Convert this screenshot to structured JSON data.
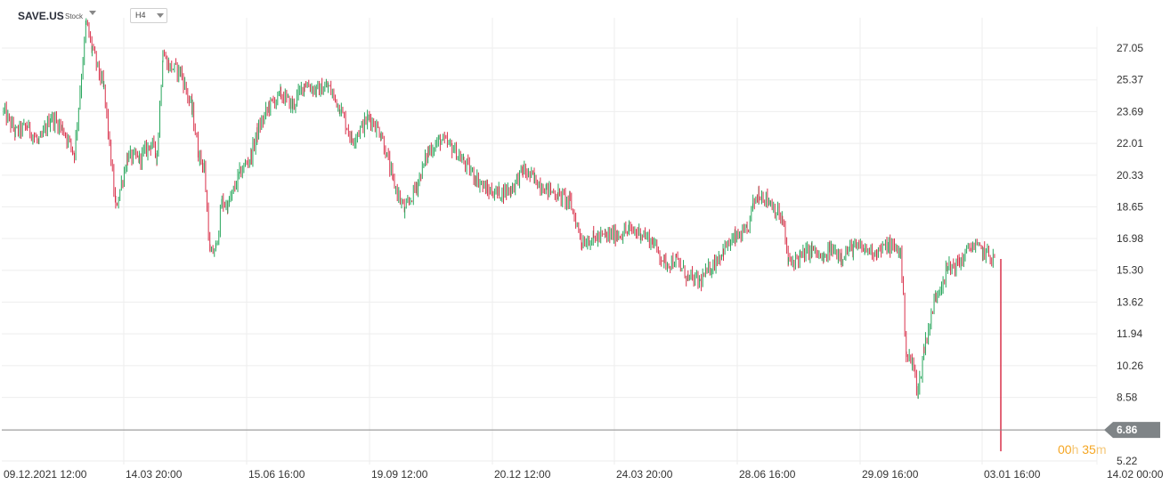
{
  "header": {
    "symbol": "SAVE.US",
    "asset_type": "Stock",
    "timeframe": "H4"
  },
  "timer": {
    "hours": "00",
    "hours_unit": "h",
    "minutes": "35",
    "minutes_unit": "m"
  },
  "colors": {
    "up": "#26a65b",
    "down": "#d9304a",
    "grid": "#eeeeee",
    "price_line": "#888888",
    "price_tag": "#7f8487",
    "timer": "#f5a623"
  },
  "chart_data": {
    "type": "candlestick",
    "title": "",
    "y_ticks": [
      "27.05",
      "25.37",
      "23.69",
      "22.01",
      "20.33",
      "18.65",
      "16.98",
      "15.30",
      "13.62",
      "11.94",
      "10.26",
      "8.58",
      "5.22"
    ],
    "ylim": [
      5.22,
      27.05
    ],
    "last_price": "6.86",
    "x_ticks": [
      "09.12.2021  12:00",
      "14.03  20:00",
      "15.06  16:00",
      "19.09  12:00",
      "20.12  12:00",
      "24.03  20:00",
      "28.06  16:00",
      "29.09  16:00",
      "03.01  16:00",
      "14.02  00:00"
    ],
    "price_path": [
      [
        0,
        23.7
      ],
      [
        2,
        22.6
      ],
      [
        4,
        22.9
      ],
      [
        6,
        22.0
      ],
      [
        8,
        23.4
      ],
      [
        10,
        22.8
      ],
      [
        12,
        21.5
      ],
      [
        14,
        28.4
      ],
      [
        15,
        27.0
      ],
      [
        17,
        24.9
      ],
      [
        19,
        18.6
      ],
      [
        21,
        21.3
      ],
      [
        23,
        21.2
      ],
      [
        25,
        22.0
      ],
      [
        26,
        21.4
      ],
      [
        27,
        26.8
      ],
      [
        28,
        26.1
      ],
      [
        30,
        25.8
      ],
      [
        32,
        23.7
      ],
      [
        33,
        21.5
      ],
      [
        34,
        20.7
      ],
      [
        35,
        16.1
      ],
      [
        36,
        16.5
      ],
      [
        37,
        18.9
      ],
      [
        38,
        18.7
      ],
      [
        40,
        20.4
      ],
      [
        42,
        21.4
      ],
      [
        43,
        22.6
      ],
      [
        45,
        24.0
      ],
      [
        47,
        24.6
      ],
      [
        49,
        24.0
      ],
      [
        51,
        25.2
      ],
      [
        53,
        24.8
      ],
      [
        55,
        25.0
      ],
      [
        57,
        23.9
      ],
      [
        59,
        22.2
      ],
      [
        62,
        23.4
      ],
      [
        64,
        22.5
      ],
      [
        66,
        20.0
      ],
      [
        68,
        18.4
      ],
      [
        70,
        19.8
      ],
      [
        72,
        21.6
      ],
      [
        74,
        22.2
      ],
      [
        76,
        21.8
      ],
      [
        78,
        21.0
      ],
      [
        80,
        20.2
      ],
      [
        82,
        19.5
      ],
      [
        84,
        19.4
      ],
      [
        86,
        19.6
      ],
      [
        88,
        20.6
      ],
      [
        90,
        20.1
      ],
      [
        92,
        19.6
      ],
      [
        94,
        19.3
      ],
      [
        96,
        18.9
      ],
      [
        98,
        16.8
      ],
      [
        100,
        17.0
      ],
      [
        102,
        17.1
      ],
      [
        104,
        17.2
      ],
      [
        106,
        17.4
      ],
      [
        108,
        17.3
      ],
      [
        110,
        16.8
      ],
      [
        112,
        15.7
      ],
      [
        114,
        15.8
      ],
      [
        116,
        14.9
      ],
      [
        118,
        14.7
      ],
      [
        120,
        15.5
      ],
      [
        122,
        16.4
      ],
      [
        124,
        17.0
      ],
      [
        126,
        17.3
      ],
      [
        127,
        18.8
      ],
      [
        128,
        19.4
      ],
      [
        130,
        18.9
      ],
      [
        132,
        17.9
      ],
      [
        133,
        15.7
      ],
      [
        135,
        16.0
      ],
      [
        137,
        16.4
      ],
      [
        139,
        15.8
      ],
      [
        140,
        16.4
      ],
      [
        142,
        16.1
      ],
      [
        144,
        16.5
      ],
      [
        146,
        16.4
      ],
      [
        148,
        16.3
      ],
      [
        150,
        16.6
      ],
      [
        152,
        16.3
      ],
      [
        153,
        10.8
      ],
      [
        154,
        10.4
      ],
      [
        155,
        8.9
      ],
      [
        156,
        11.2
      ],
      [
        158,
        14.0
      ],
      [
        160,
        15.4
      ],
      [
        162,
        15.7
      ],
      [
        164,
        16.6
      ],
      [
        166,
        16.3
      ],
      [
        168,
        15.9
      ],
      [
        169,
        6.86
      ]
    ]
  }
}
